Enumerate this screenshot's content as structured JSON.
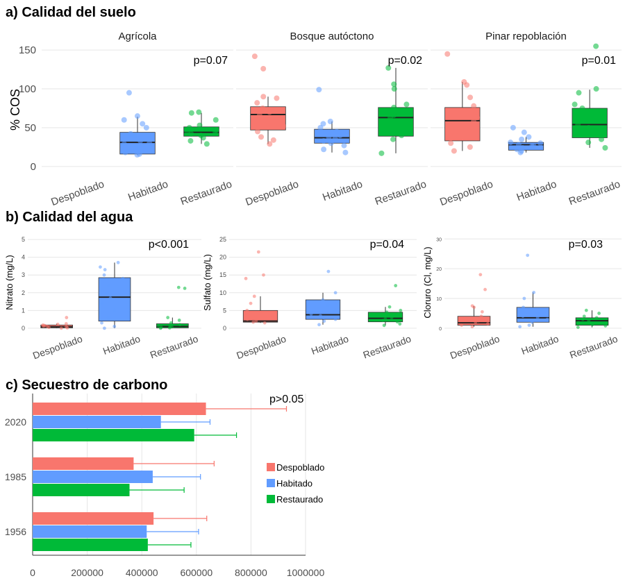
{
  "sections": {
    "a": "a) Calidad del suelo",
    "b": "b) Calidad del agua",
    "c": "c) Secuestro de carbono"
  },
  "colors": {
    "Despoblado": "#f8766d",
    "Habitado": "#619cff",
    "Restaurado": "#00ba38"
  },
  "chart_data": [
    {
      "id": "soil",
      "type": "box",
      "ylabel": "% COS",
      "ylim": [
        -10,
        160
      ],
      "yticks": [
        0,
        50,
        100,
        150
      ],
      "categories": [
        "Despoblado",
        "Habitado",
        "Restaurado"
      ],
      "facets": [
        {
          "title": "Agrícola",
          "pvalue": "p=0.07",
          "boxes": [
            null,
            {
              "q1": 16,
              "median": 31,
              "q3": 44,
              "whisker_low": 15,
              "whisker_high": 64,
              "points": [
                15,
                16,
                18,
                20,
                22,
                26,
                29,
                30,
                33,
                40,
                42,
                50,
                55,
                60,
                65,
                95
              ]
            },
            {
              "q1": 39,
              "median": 44,
              "q3": 51,
              "whisker_low": 29,
              "whisker_high": 69,
              "points": [
                29,
                33,
                37,
                40,
                42,
                44,
                45,
                47,
                50,
                53,
                60,
                69,
                70
              ]
            }
          ]
        },
        {
          "title": "Bosque autóctono",
          "pvalue": "p=0.02",
          "boxes": [
            {
              "q1": 47,
              "median": 67,
              "q3": 77,
              "whisker_low": 29,
              "whisker_high": 90,
              "points": [
                29,
                34,
                38,
                45,
                52,
                60,
                66,
                70,
                75,
                82,
                88,
                90,
                126,
                142
              ]
            },
            {
              "q1": 30,
              "median": 37,
              "q3": 48,
              "whisker_low": 18,
              "whisker_high": 58,
              "points": [
                18,
                22,
                27,
                30,
                33,
                36,
                38,
                40,
                45,
                50,
                55,
                58,
                99
              ]
            },
            {
              "q1": 39,
              "median": 63,
              "q3": 76,
              "whisker_low": 17,
              "whisker_high": 127,
              "points": [
                17,
                35,
                40,
                50,
                58,
                63,
                66,
                70,
                76,
                80,
                100,
                106,
                127
              ]
            }
          ]
        },
        {
          "title": "Pinar repoblación",
          "pvalue": "p=0.01",
          "boxes": [
            {
              "q1": 33,
              "median": 59,
              "q3": 76,
              "whisker_low": 20,
              "whisker_high": 109,
              "points": [
                20,
                25,
                30,
                40,
                50,
                58,
                63,
                70,
                78,
                89,
                105,
                109,
                145
              ]
            },
            {
              "q1": 21,
              "median": 28,
              "q3": 31,
              "whisker_low": 18,
              "whisker_high": 38,
              "points": [
                18,
                20,
                22,
                24,
                26,
                27,
                28,
                30,
                31,
                35,
                38,
                44,
                50
              ]
            },
            {
              "q1": 37,
              "median": 54,
              "q3": 75,
              "whisker_low": 24,
              "whisker_high": 99,
              "points": [
                24,
                31,
                35,
                42,
                50,
                54,
                60,
                68,
                75,
                80,
                95,
                100,
                155
              ]
            }
          ]
        }
      ]
    },
    {
      "id": "nitrate",
      "type": "box",
      "ylabel": "Nitrato (mg/L)",
      "pvalue": "p<0.001",
      "ylim": [
        -0.2,
        5.2
      ],
      "yticks": [
        0,
        1,
        2,
        3,
        4,
        5
      ],
      "categories": [
        "Despoblado",
        "Habitado",
        "Restaurado"
      ],
      "boxes": [
        {
          "q1": 0.02,
          "median": 0.08,
          "q3": 0.18,
          "whisker_low": 0.0,
          "whisker_high": 0.25,
          "points": [
            0.0,
            0.02,
            0.05,
            0.08,
            0.1,
            0.12,
            0.15,
            0.18,
            0.22,
            0.25,
            0.6
          ]
        },
        {
          "q1": 0.4,
          "median": 1.75,
          "q3": 2.85,
          "whisker_low": 0.0,
          "whisker_high": 3.7,
          "points": [
            0.0,
            0.1,
            0.3,
            0.6,
            1.0,
            1.4,
            1.7,
            2.0,
            2.4,
            2.8,
            3.0,
            3.3,
            3.45,
            3.7
          ]
        },
        {
          "q1": 0.02,
          "median": 0.1,
          "q3": 0.25,
          "whisker_low": 0.0,
          "whisker_high": 0.6,
          "points": [
            0.0,
            0.02,
            0.05,
            0.08,
            0.12,
            0.15,
            0.2,
            0.3,
            0.45,
            0.6,
            2.25,
            2.3
          ]
        }
      ]
    },
    {
      "id": "sulfate",
      "type": "box",
      "ylabel": "Sulfato (mg/L)",
      "pvalue": "p=0.04",
      "ylim": [
        -1,
        26
      ],
      "yticks": [
        0,
        5,
        10,
        15,
        20,
        25
      ],
      "categories": [
        "Despoblado",
        "Habitado",
        "Restaurado"
      ],
      "boxes": [
        {
          "q1": 1.7,
          "median": 2.0,
          "q3": 5.0,
          "whisker_low": 1.5,
          "whisker_high": 9.0,
          "points": [
            1.5,
            1.7,
            2.0,
            2.5,
            3.0,
            4.0,
            5.0,
            7.0,
            9.0,
            14.0,
            15.0,
            21.5
          ]
        },
        {
          "q1": 2.5,
          "median": 3.8,
          "q3": 8.0,
          "whisker_low": 1.0,
          "whisker_high": 10.0,
          "points": [
            1.0,
            2.0,
            2.5,
            3.0,
            3.5,
            4.0,
            5.0,
            6.5,
            8.0,
            10.0,
            16.0
          ]
        },
        {
          "q1": 1.8,
          "median": 2.8,
          "q3": 4.5,
          "whisker_low": 0.8,
          "whisker_high": 6.0,
          "points": [
            0.8,
            1.2,
            1.8,
            2.2,
            2.6,
            3.0,
            3.5,
            4.0,
            4.5,
            5.0,
            6.0,
            12.0
          ]
        }
      ]
    },
    {
      "id": "chloride",
      "type": "box",
      "ylabel": "Cloruro (Cl, mg/L)",
      "pvalue": "p=0.03",
      "ylim": [
        -1.2,
        31
      ],
      "yticks": [
        0,
        10,
        20,
        30
      ],
      "categories": [
        "Despoblado",
        "Habitado",
        "Restaurado"
      ],
      "boxes": [
        {
          "q1": 1.0,
          "median": 1.8,
          "q3": 4.0,
          "whisker_low": 0.5,
          "whisker_high": 7.5,
          "points": [
            0.5,
            1.0,
            1.5,
            2.0,
            2.5,
            3.0,
            4.0,
            5.5,
            7.0,
            7.5,
            13.0,
            18.0
          ]
        },
        {
          "q1": 2.0,
          "median": 3.5,
          "q3": 7.0,
          "whisker_low": 0.5,
          "whisker_high": 12.0,
          "points": [
            0.5,
            1.0,
            2.0,
            3.0,
            3.5,
            4.0,
            5.0,
            7.0,
            10.0,
            12.0,
            24.5
          ]
        },
        {
          "q1": 1.0,
          "median": 2.5,
          "q3": 3.5,
          "whisker_low": 0.3,
          "whisker_high": 6.0,
          "points": [
            0.3,
            0.8,
            1.2,
            1.8,
            2.5,
            3.0,
            3.5,
            4.0,
            5.0,
            6.0
          ]
        }
      ]
    },
    {
      "id": "carbon",
      "type": "bar",
      "orientation": "horizontal",
      "pvalue": "p>0.05",
      "categories": [
        "2020",
        "1985",
        "1956"
      ],
      "series": [
        {
          "name": "Despoblado",
          "values": [
            635000,
            370000,
            443000
          ],
          "errors": [
            295000,
            295000,
            195000
          ]
        },
        {
          "name": "Habitado",
          "values": [
            470000,
            440000,
            418000
          ],
          "errors": [
            180000,
            175000,
            190000
          ]
        },
        {
          "name": "Restaurado",
          "values": [
            592000,
            355000,
            422000
          ],
          "errors": [
            155000,
            200000,
            158000
          ]
        }
      ],
      "xlim": [
        0,
        1000000
      ],
      "xticks": [
        0,
        200000,
        400000,
        600000,
        800000,
        1000000
      ],
      "legend": "right"
    }
  ]
}
